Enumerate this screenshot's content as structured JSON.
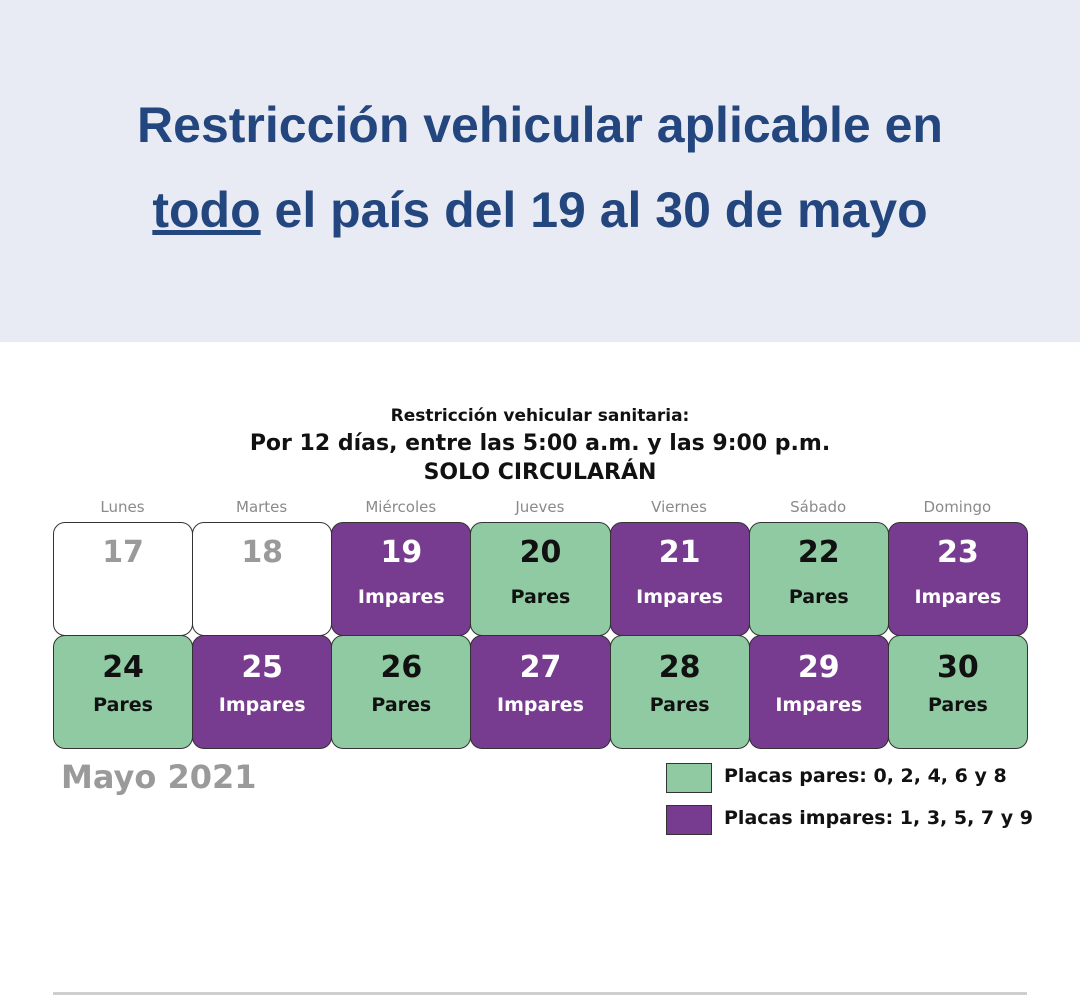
{
  "header": {
    "title_start": "Restricción vehicular aplicable en",
    "title_underlined": "todo",
    "title_end": "el país del 19 al 30 de mayo"
  },
  "calendar": {
    "heading": [
      "Restricción vehicular sanitaria:",
      "Por 12 días, entre las 5:00 a.m. y las 9:00 p.m.",
      "SOLO CIRCULARÁN"
    ],
    "weekdays": [
      "Lunes",
      "Martes",
      "Miércoles",
      "Jueves",
      "Viernes",
      "Sábado",
      "Domingo"
    ],
    "days": [
      {
        "day": 17,
        "color": "#ffffff",
        "text_color": "#9a9a9a"
      },
      {
        "day": 18,
        "color": "#ffffff",
        "text_color": "#9a9a9a"
      },
      {
        "day": 19,
        "label": "Impares",
        "color": "#773c8f",
        "text_color": "#ffffff"
      },
      {
        "day": 20,
        "label": "Pares",
        "color": "#8fcaa2",
        "text_color": "#111111"
      },
      {
        "day": 21,
        "label": "Impares",
        "color": "#773c8f",
        "text_color": "#ffffff"
      },
      {
        "day": 22,
        "label": "Pares",
        "color": "#8fcaa2",
        "text_color": "#111111"
      },
      {
        "day": 23,
        "label": "Impares",
        "color": "#773c8f",
        "text_color": "#ffffff"
      },
      {
        "day": 24,
        "label": "Pares",
        "color": "#8fcaa2",
        "text_color": "#111111"
      },
      {
        "day": 25,
        "label": "Impares",
        "color": "#773c8f",
        "text_color": "#ffffff"
      },
      {
        "day": 26,
        "label": "Pares",
        "color": "#8fcaa2",
        "text_color": "#111111"
      },
      {
        "day": 27,
        "label": "Impares",
        "color": "#773c8f",
        "text_color": "#ffffff"
      },
      {
        "day": 28,
        "label": "Pares",
        "color": "#8fcaa2",
        "text_color": "#111111"
      },
      {
        "day": 29,
        "label": "Impares",
        "color": "#773c8f",
        "text_color": "#ffffff"
      },
      {
        "day": 30,
        "label": "Pares",
        "color": "#8fcaa2",
        "text_color": "#111111"
      }
    ],
    "month": "Mayo 2021",
    "legend": [
      {
        "label": "Placas pares: 0, 2, 4, 6 y 8",
        "color": "#8fcaa2"
      },
      {
        "label": "Placas impares: 1, 3, 5, 7 y 9",
        "color": "#773c8f"
      }
    ]
  }
}
